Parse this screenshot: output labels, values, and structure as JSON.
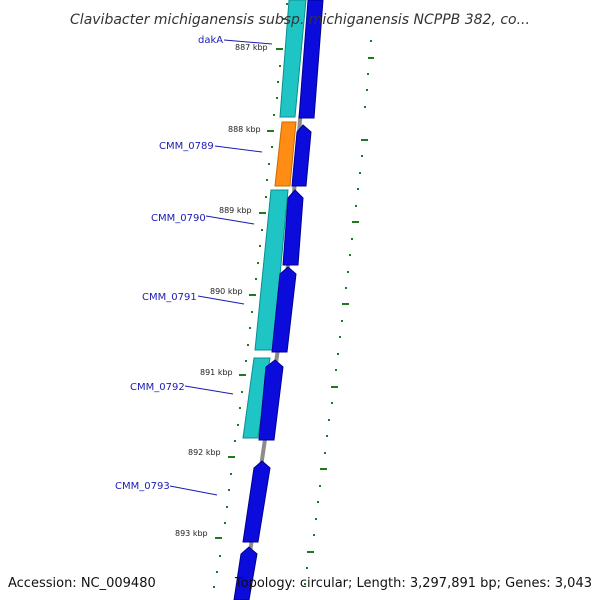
{
  "title": "Clavibacter michiganensis subsp. michiganensis NCPPB 382, co...",
  "accession": "Accession: NC_009480",
  "summary": "Topology: circular; Length: 3,297,891 bp; Genes: 3,043",
  "colors": {
    "backbone": "#8c8c8c",
    "reverse_gene": "#1fc4c4",
    "forward_gene": "#0b0bdc",
    "highlight_gene": "#ff8c14",
    "label_line": "#1b1bb5",
    "tick": "#1f7a1f"
  },
  "kbp_marks": [
    "887 kbp",
    "888 kbp",
    "889 kbp",
    "890 kbp",
    "891 kbp",
    "892 kbp",
    "893 kbp"
  ],
  "gene_labels": [
    "dakA",
    "CMM_0789",
    "CMM_0790",
    "CMM_0791",
    "CMM_0792",
    "CMM_0793"
  ]
}
